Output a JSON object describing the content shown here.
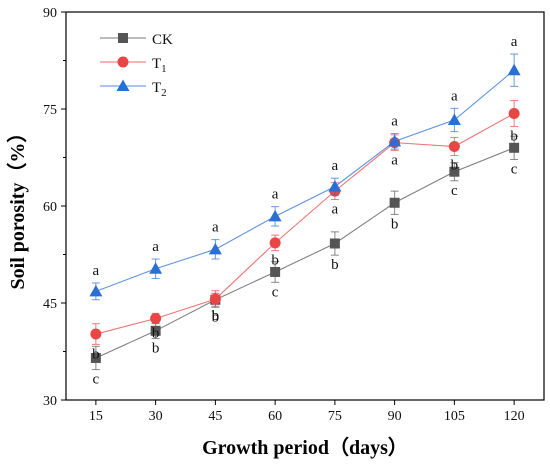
{
  "chart_data": {
    "type": "line",
    "xlabel": "Growth period（days）",
    "ylabel": "Soil porosity（%）",
    "x": [
      15,
      30,
      45,
      60,
      75,
      90,
      105,
      120
    ],
    "x_ticks": [
      "15",
      "30",
      "45",
      "60",
      "75",
      "90",
      "105",
      "120"
    ],
    "y_ticks": [
      "30",
      "45",
      "60",
      "75",
      "90"
    ],
    "ylim": [
      30,
      90
    ],
    "grid": false,
    "legend_position": "top-left",
    "series": [
      {
        "name": "CK",
        "legend_base": "CK",
        "legend_sub": "",
        "color": "#555555",
        "marker": "square",
        "values": [
          36.5,
          40.7,
          45.5,
          49.8,
          54.2,
          60.5,
          65.3,
          69.0
        ],
        "errors": [
          1.8,
          1.2,
          1.0,
          1.6,
          1.8,
          1.8,
          1.4,
          1.8
        ],
        "letters": [
          "c",
          "b",
          "b",
          "c",
          "b",
          "b",
          "c",
          "c"
        ]
      },
      {
        "name": "T1",
        "legend_base": "T",
        "legend_sub": "1",
        "color": "#e84545",
        "marker": "circle",
        "values": [
          40.2,
          42.6,
          45.6,
          54.3,
          62.3,
          69.8,
          69.2,
          74.3
        ],
        "errors": [
          1.6,
          0.8,
          1.3,
          1.2,
          1.3,
          1.2,
          1.4,
          2.0
        ],
        "letters": [
          "b",
          "b",
          "b",
          "b",
          "a",
          "a",
          "b",
          "b"
        ]
      },
      {
        "name": "T2",
        "legend_base": "T",
        "legend_sub": "2",
        "color": "#2a6fd6",
        "marker": "triangle",
        "values": [
          46.8,
          50.3,
          53.3,
          58.4,
          63.0,
          70.0,
          73.3,
          81.0
        ],
        "errors": [
          1.3,
          1.5,
          1.5,
          1.5,
          1.3,
          1.2,
          1.8,
          2.5
        ],
        "letters": [
          "a",
          "a",
          "a",
          "a",
          "a",
          "a",
          "a",
          "a"
        ]
      }
    ]
  }
}
